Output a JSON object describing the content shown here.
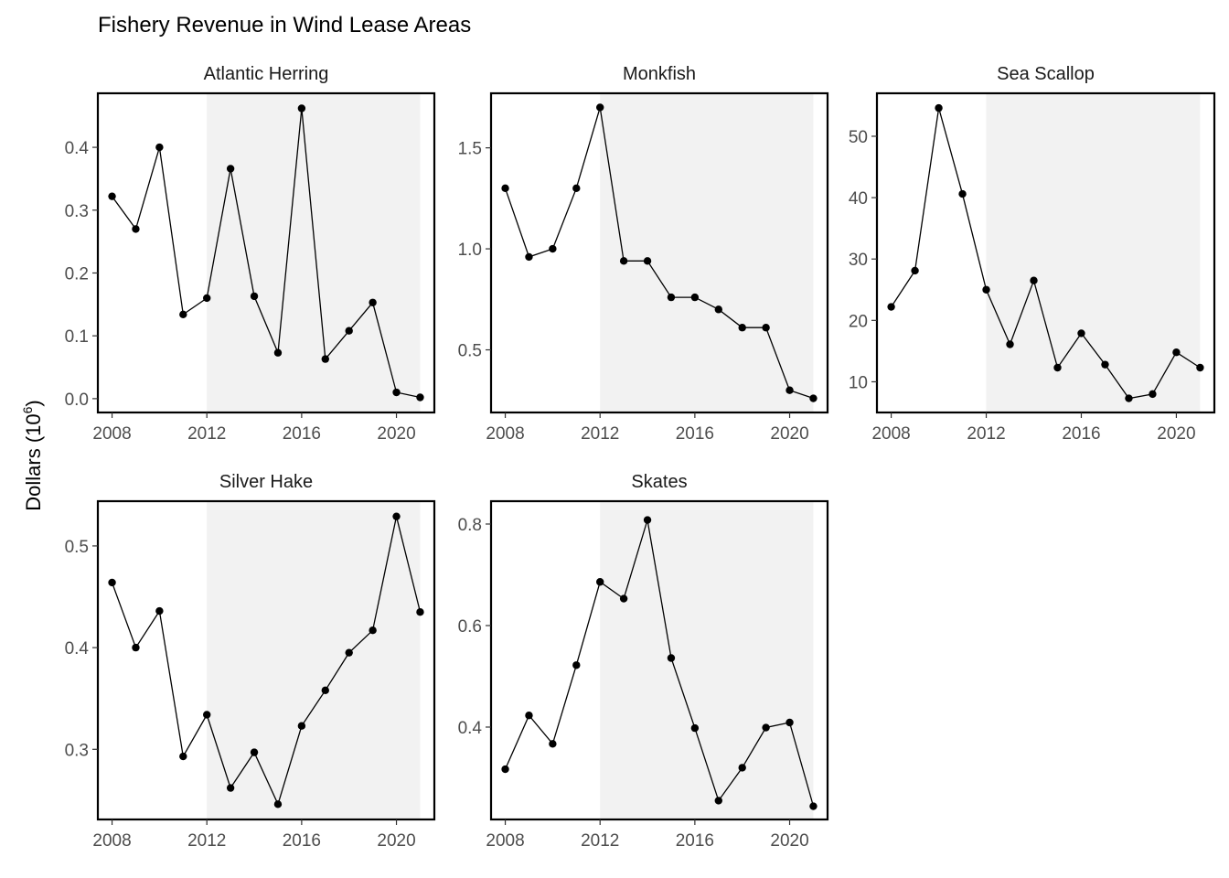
{
  "chart_data": {
    "type": "line",
    "title": "Fishery Revenue in Wind Lease Areas",
    "ylabel": {
      "base": "Dollars (10",
      "exponent": "6",
      "close": ")"
    },
    "xlabel": "",
    "shaded_range": [
      2012,
      2021
    ],
    "x": [
      2008,
      2009,
      2010,
      2011,
      2012,
      2013,
      2014,
      2015,
      2016,
      2017,
      2018,
      2019,
      2020,
      2021
    ],
    "x_ticks": [
      2008,
      2012,
      2016,
      2020
    ],
    "xlim": [
      2007.4,
      2021.6
    ],
    "grid": false,
    "panels": [
      {
        "name": "Atlantic Herring",
        "values": [
          0.322,
          0.27,
          0.4,
          0.134,
          0.16,
          0.366,
          0.163,
          0.073,
          0.462,
          0.063,
          0.108,
          0.153,
          0.01,
          0.002
        ],
        "y_ticks": [
          0.0,
          0.1,
          0.2,
          0.3,
          0.4
        ],
        "y_tick_labels": [
          "0.0",
          "0.1",
          "0.2",
          "0.3",
          "0.4"
        ],
        "ylim": [
          -0.022,
          0.486
        ]
      },
      {
        "name": "Monkfish",
        "values": [
          1.3,
          0.96,
          1.0,
          1.3,
          1.7,
          0.94,
          0.94,
          0.76,
          0.76,
          0.7,
          0.61,
          0.61,
          0.3,
          0.26
        ],
        "y_ticks": [
          0.5,
          1.0,
          1.5
        ],
        "y_tick_labels": [
          "0.5",
          "1.0",
          "1.5"
        ],
        "ylim": [
          0.19,
          1.77
        ]
      },
      {
        "name": "Sea Scallop",
        "values": [
          22.2,
          28.1,
          54.6,
          40.6,
          25.0,
          16.1,
          26.5,
          12.3,
          17.9,
          12.8,
          7.3,
          8.0,
          14.8,
          12.3
        ],
        "y_ticks": [
          10,
          20,
          30,
          40,
          50
        ],
        "y_tick_labels": [
          "10",
          "20",
          "30",
          "40",
          "50"
        ],
        "ylim": [
          5.0,
          57.0
        ]
      },
      {
        "name": "Silver Hake",
        "values": [
          0.464,
          0.4,
          0.436,
          0.293,
          0.334,
          0.262,
          0.297,
          0.246,
          0.323,
          0.358,
          0.395,
          0.417,
          0.529,
          0.435
        ],
        "y_ticks": [
          0.3,
          0.4,
          0.5
        ],
        "y_tick_labels": [
          "0.3",
          "0.4",
          "0.5"
        ],
        "ylim": [
          0.231,
          0.544
        ]
      },
      {
        "name": "Skates",
        "values": [
          0.317,
          0.423,
          0.367,
          0.522,
          0.686,
          0.653,
          0.808,
          0.536,
          0.398,
          0.255,
          0.32,
          0.399,
          0.409,
          0.244
        ],
        "y_ticks": [
          0.4,
          0.6,
          0.8
        ],
        "y_tick_labels": [
          "0.4",
          "0.6",
          "0.8"
        ],
        "ylim": [
          0.218,
          0.845
        ]
      }
    ],
    "colors": {
      "line": "#000000",
      "point": "#000000",
      "shade": "#f2f2f2",
      "frame": "#000000",
      "tick_text": "#4d4d4d"
    }
  }
}
